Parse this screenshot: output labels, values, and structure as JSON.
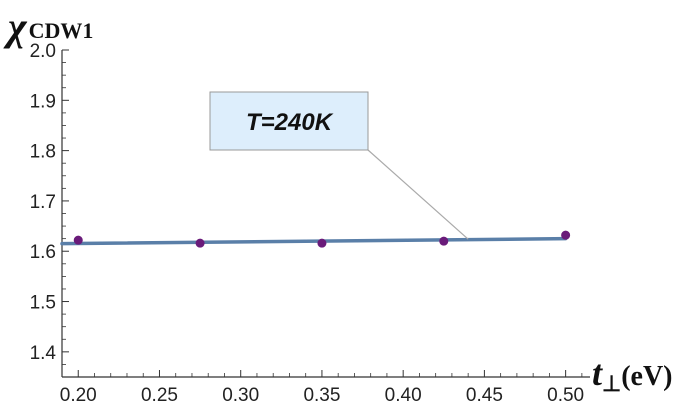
{
  "chart_data": {
    "type": "scatter",
    "title": "",
    "ylabel": "χ",
    "ylabel_subscript": "CDW1",
    "xlabel": "t",
    "xlabel_subscript": "⊥",
    "xlabel_unit": "(eV)",
    "xlim": [
      0.19,
      0.515
    ],
    "ylim": [
      1.35,
      2.0
    ],
    "xticks": [
      0.2,
      0.25,
      0.3,
      0.35,
      0.4,
      0.45,
      0.5
    ],
    "xtick_labels": [
      "0.20",
      "0.25",
      "0.30",
      "0.35",
      "0.40",
      "0.45",
      "0.50"
    ],
    "yticks": [
      1.4,
      1.5,
      1.6,
      1.7,
      1.8,
      1.9,
      2.0
    ],
    "ytick_labels": [
      "1.4",
      "1.5",
      "1.6",
      "1.7",
      "1.8",
      "1.9",
      "2.0"
    ],
    "grid": false,
    "points": {
      "x": [
        0.2,
        0.275,
        0.35,
        0.425,
        0.5
      ],
      "y": [
        1.622,
        1.616,
        1.616,
        1.62,
        1.632
      ],
      "color": "#6a1b7a"
    },
    "fit_line": {
      "x": [
        0.19,
        0.5
      ],
      "y": [
        1.615,
        1.625
      ],
      "color": "#5a7fa8"
    },
    "annotation": {
      "text": "T=240K",
      "anchor_x": 0.44,
      "anchor_y": 1.624,
      "box_fill": "#ddeefc",
      "box_stroke": "#999999"
    },
    "axis_color": "#333333"
  }
}
